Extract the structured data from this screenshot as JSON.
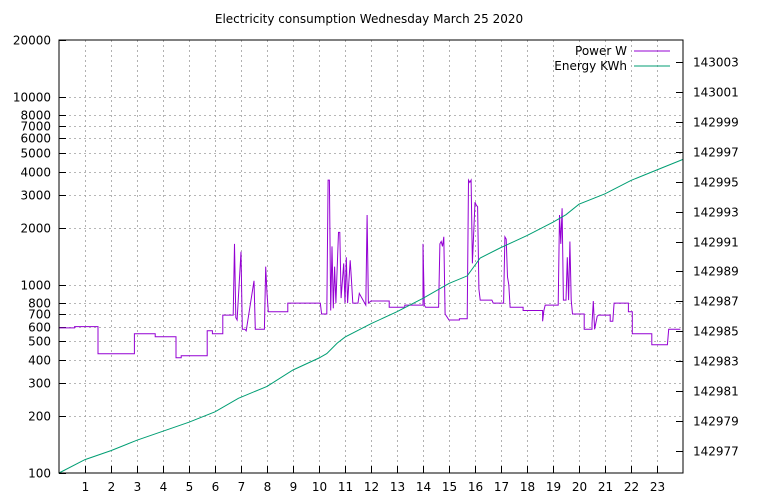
{
  "chart_data": {
    "type": "line",
    "title": "Electricity consumption Wednesday March 25 2020",
    "xlabel": "",
    "ylabel_left": "",
    "ylabel_right": "",
    "grid": true,
    "legend_position": "top-right",
    "x_range": [
      0,
      24
    ],
    "x_ticks": [
      "1",
      "2",
      "3",
      "4",
      "5",
      "6",
      "7",
      "8",
      "9",
      "10",
      "11",
      "12",
      "13",
      "14",
      "15",
      "16",
      "17",
      "18",
      "19",
      "20",
      "21",
      "22",
      "23"
    ],
    "y_left": {
      "scale": "log",
      "range": [
        100,
        20000
      ],
      "ticks": [
        "100",
        "200",
        "300",
        "400",
        "500",
        "600",
        "700",
        "800",
        "1000",
        "2000",
        "3000",
        "4000",
        "5000",
        "6000",
        "7000",
        "8000",
        "10000",
        "20000"
      ]
    },
    "y_right": {
      "scale": "linear",
      "range": [
        142975.5,
        143004.5
      ],
      "ticks": [
        "142977",
        "142979",
        "142981",
        "142983",
        "142985",
        "142987",
        "142989",
        "142991",
        "142993",
        "142995",
        "142997",
        "142999",
        "143001",
        "143003"
      ]
    },
    "series": [
      {
        "name": "Power W",
        "axis": "left",
        "color": "#9400d3",
        "points": [
          [
            0,
            590
          ],
          [
            0.6,
            590
          ],
          [
            0.6,
            600
          ],
          [
            1.5,
            600
          ],
          [
            1.5,
            430
          ],
          [
            2.9,
            430
          ],
          [
            2.9,
            550
          ],
          [
            3.7,
            550
          ],
          [
            3.7,
            530
          ],
          [
            4.5,
            530
          ],
          [
            4.5,
            410
          ],
          [
            4.7,
            410
          ],
          [
            4.7,
            420
          ],
          [
            5.7,
            420
          ],
          [
            5.7,
            570
          ],
          [
            5.9,
            570
          ],
          [
            5.9,
            550
          ],
          [
            6.3,
            550
          ],
          [
            6.3,
            690
          ],
          [
            6.7,
            690
          ],
          [
            6.75,
            1650
          ],
          [
            6.8,
            670
          ],
          [
            6.85,
            650
          ],
          [
            7.0,
            1500
          ],
          [
            7.05,
            580
          ],
          [
            7.15,
            580
          ],
          [
            7.2,
            570
          ],
          [
            7.5,
            1050
          ],
          [
            7.55,
            580
          ],
          [
            7.9,
            580
          ],
          [
            7.95,
            1250
          ],
          [
            8.0,
            900
          ],
          [
            8.05,
            720
          ],
          [
            8.8,
            720
          ],
          [
            8.8,
            800
          ],
          [
            10.05,
            800
          ],
          [
            10.1,
            700
          ],
          [
            10.3,
            700
          ],
          [
            10.35,
            3600
          ],
          [
            10.4,
            3600
          ],
          [
            10.45,
            730
          ],
          [
            10.5,
            1600
          ],
          [
            10.55,
            750
          ],
          [
            10.6,
            1250
          ],
          [
            10.65,
            800
          ],
          [
            10.75,
            1900
          ],
          [
            10.8,
            1900
          ],
          [
            10.85,
            850
          ],
          [
            10.95,
            1300
          ],
          [
            11.0,
            800
          ],
          [
            11.05,
            1400
          ],
          [
            11.1,
            800
          ],
          [
            11.2,
            1350
          ],
          [
            11.25,
            1050
          ],
          [
            11.3,
            800
          ],
          [
            11.5,
            800
          ],
          [
            11.55,
            900
          ],
          [
            11.8,
            780
          ],
          [
            11.85,
            2350
          ],
          [
            11.9,
            800
          ],
          [
            12.0,
            820
          ],
          [
            12.7,
            820
          ],
          [
            12.7,
            760
          ],
          [
            13.3,
            760
          ],
          [
            13.3,
            780
          ],
          [
            14.0,
            780
          ],
          [
            14.0,
            1650
          ],
          [
            14.05,
            780
          ],
          [
            14.1,
            760
          ],
          [
            14.6,
            760
          ],
          [
            14.65,
            1650
          ],
          [
            14.7,
            1700
          ],
          [
            14.75,
            1600
          ],
          [
            14.8,
            1800
          ],
          [
            14.85,
            700
          ],
          [
            15.0,
            650
          ],
          [
            15.4,
            650
          ],
          [
            15.4,
            660
          ],
          [
            15.7,
            660
          ],
          [
            15.75,
            3600
          ],
          [
            15.8,
            3500
          ],
          [
            15.85,
            3600
          ],
          [
            15.9,
            1300
          ],
          [
            16.0,
            2750
          ],
          [
            16.05,
            2650
          ],
          [
            16.1,
            2600
          ],
          [
            16.15,
            950
          ],
          [
            16.2,
            830
          ],
          [
            16.65,
            830
          ],
          [
            16.7,
            800
          ],
          [
            17.1,
            800
          ],
          [
            17.15,
            1800
          ],
          [
            17.2,
            1750
          ],
          [
            17.25,
            1100
          ],
          [
            17.3,
            1000
          ],
          [
            17.35,
            760
          ],
          [
            17.85,
            760
          ],
          [
            17.85,
            730
          ],
          [
            18.6,
            730
          ],
          [
            18.6,
            640
          ],
          [
            18.65,
            730
          ],
          [
            18.7,
            780
          ],
          [
            19.2,
            780
          ],
          [
            19.25,
            2350
          ],
          [
            19.3,
            1650
          ],
          [
            19.35,
            2550
          ],
          [
            19.4,
            830
          ],
          [
            19.5,
            830
          ],
          [
            19.55,
            1400
          ],
          [
            19.6,
            830
          ],
          [
            19.65,
            1700
          ],
          [
            19.7,
            830
          ],
          [
            19.75,
            700
          ],
          [
            20.2,
            700
          ],
          [
            20.2,
            580
          ],
          [
            20.5,
            580
          ],
          [
            20.5,
            620
          ],
          [
            20.55,
            820
          ],
          [
            20.6,
            580
          ],
          [
            20.7,
            680
          ],
          [
            20.75,
            690
          ],
          [
            21.2,
            690
          ],
          [
            21.2,
            640
          ],
          [
            21.3,
            640
          ],
          [
            21.35,
            800
          ],
          [
            21.9,
            800
          ],
          [
            21.9,
            720
          ],
          [
            22.05,
            720
          ],
          [
            22.05,
            550
          ],
          [
            22.8,
            550
          ],
          [
            22.8,
            480
          ],
          [
            23.4,
            480
          ],
          [
            23.45,
            580
          ],
          [
            23.9,
            580
          ]
        ]
      },
      {
        "name": "Energy KWh",
        "axis": "right",
        "color": "#009e73",
        "points": [
          [
            0,
            142975.5
          ],
          [
            1,
            142976.4
          ],
          [
            2,
            142977.0
          ],
          [
            3,
            142977.7
          ],
          [
            4,
            142978.3
          ],
          [
            5,
            142978.9
          ],
          [
            6,
            142979.6
          ],
          [
            6.9,
            142980.5
          ],
          [
            8,
            142981.3
          ],
          [
            9,
            142982.4
          ],
          [
            10,
            142983.2
          ],
          [
            10.3,
            142983.5
          ],
          [
            10.7,
            142984.2
          ],
          [
            11,
            142984.6
          ],
          [
            12,
            142985.5
          ],
          [
            13,
            142986.3
          ],
          [
            14,
            142987.2
          ],
          [
            15,
            142988.2
          ],
          [
            15.7,
            142988.7
          ],
          [
            16.2,
            142989.9
          ],
          [
            17,
            142990.6
          ],
          [
            17.5,
            142991.0
          ],
          [
            18,
            142991.4
          ],
          [
            19,
            142992.3
          ],
          [
            19.5,
            142992.8
          ],
          [
            20,
            142993.5
          ],
          [
            21,
            142994.2
          ],
          [
            22,
            142995.1
          ],
          [
            23,
            142995.8
          ],
          [
            24,
            142996.5
          ]
        ]
      }
    ]
  }
}
